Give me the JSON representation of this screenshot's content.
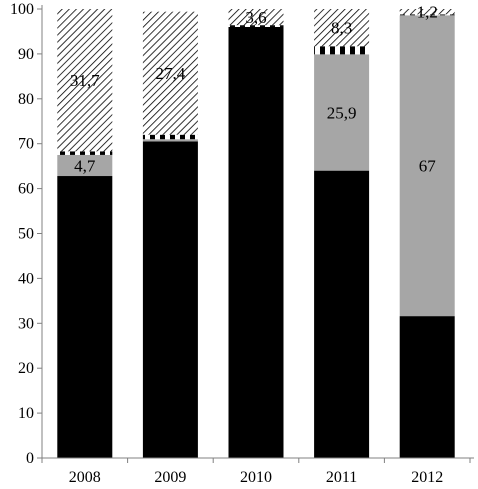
{
  "chart_data": {
    "type": "bar",
    "stacked": true,
    "categories": [
      "2008",
      "2009",
      "2010",
      "2011",
      "2012"
    ],
    "series": [
      {
        "fill": "solid-black",
        "values": [
          62.8,
          70.5,
          96.0,
          64.0,
          31.6
        ]
      },
      {
        "fill": "solid-gray",
        "values": [
          4.7,
          0.5,
          0.0,
          25.9,
          67.0
        ]
      },
      {
        "fill": "black-white-dashed",
        "values": [
          0.8,
          1.0,
          0.4,
          1.8,
          0.2
        ]
      },
      {
        "fill": "diagonal-hatch",
        "values": [
          31.7,
          27.4,
          3.6,
          8.3,
          1.2
        ]
      }
    ],
    "data_labels": [
      {
        "category": "2008",
        "series": 1,
        "text": "4,7"
      },
      {
        "category": "2008",
        "series": 3,
        "text": "31,7"
      },
      {
        "category": "2009",
        "series": 3,
        "text": "27,4"
      },
      {
        "category": "2010",
        "series": 3,
        "text": "3,6"
      },
      {
        "category": "2011",
        "series": 1,
        "text": "25,9"
      },
      {
        "category": "2011",
        "series": 3,
        "text": "8,3"
      },
      {
        "category": "2012",
        "series": 1,
        "text": "67"
      },
      {
        "category": "2012",
        "series": 3,
        "text": "1,2"
      }
    ],
    "y_ticks": [
      "0",
      "10",
      "20",
      "30",
      "40",
      "50",
      "60",
      "70",
      "80",
      "90",
      "100"
    ],
    "ylim": [
      0,
      100
    ],
    "title": "",
    "xlabel": "",
    "ylabel": "",
    "grid": false,
    "legend": "none",
    "colors": {
      "black": "#000000",
      "gray": "#a6a6a6",
      "axis": "#808080",
      "hatch": "#000000"
    }
  }
}
